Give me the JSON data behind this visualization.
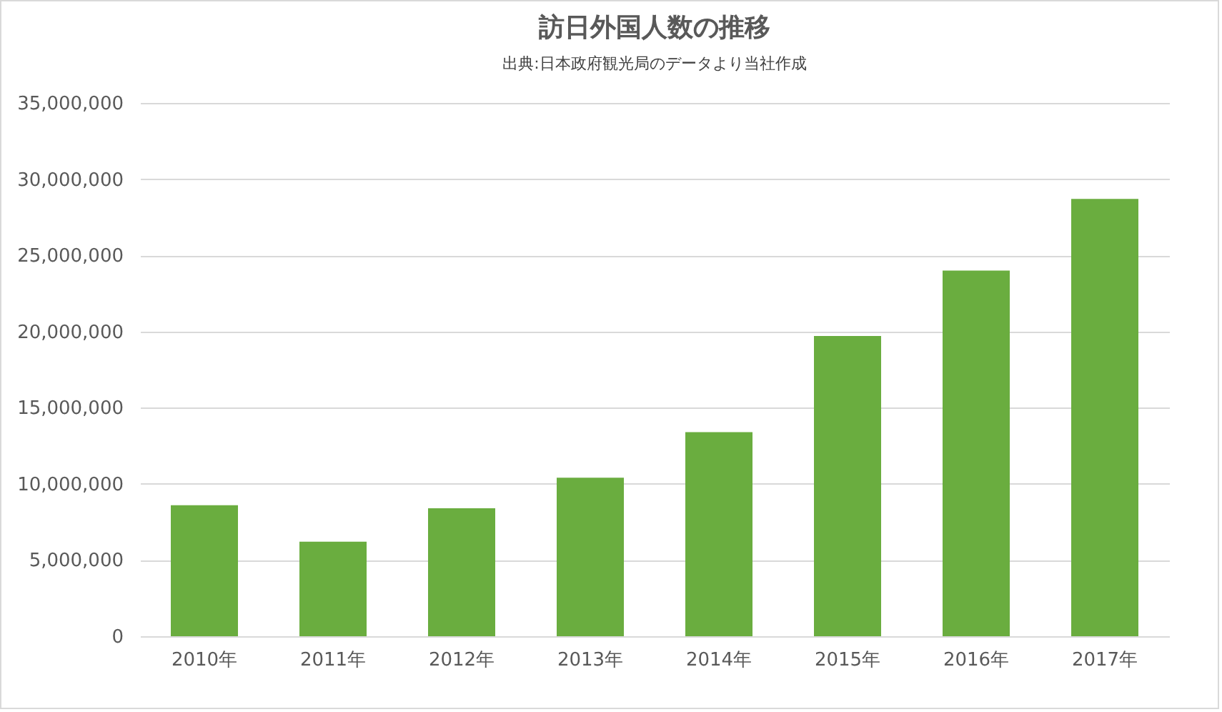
{
  "chart_data": {
    "type": "bar",
    "title": "訪日外国人数の推移",
    "subtitle": "出典:日本政府観光局のデータより当社作成",
    "categories": [
      "2010年",
      "2011年",
      "2012年",
      "2013年",
      "2014年",
      "2015年",
      "2016年",
      "2017年"
    ],
    "values": [
      8600000,
      6200000,
      8400000,
      10400000,
      13400000,
      19700000,
      24000000,
      28700000
    ],
    "color": "#6aad3f",
    "ylim": [
      0,
      35000000
    ],
    "yticks": [
      {
        "value": 0,
        "label": "0"
      },
      {
        "value": 5000000,
        "label": "5,000,000"
      },
      {
        "value": 10000000,
        "label": "10,000,000"
      },
      {
        "value": 15000000,
        "label": "15,000,000"
      },
      {
        "value": 20000000,
        "label": "20,000,000"
      },
      {
        "value": 25000000,
        "label": "25,000,000"
      },
      {
        "value": 30000000,
        "label": "30,000,000"
      },
      {
        "value": 35000000,
        "label": "35,000,000"
      }
    ],
    "grid": "y"
  }
}
